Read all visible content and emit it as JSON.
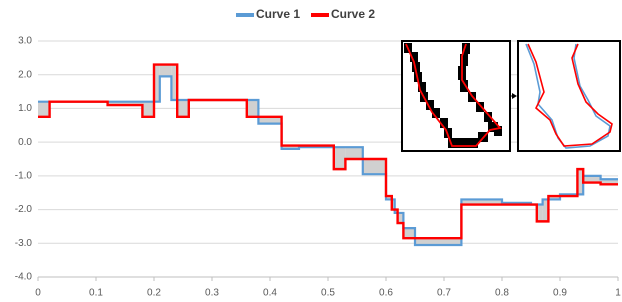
{
  "chart_data": {
    "type": "step",
    "legend": "top",
    "grid": true,
    "xlim": [
      0,
      1
    ],
    "xticks": [
      0,
      0.1,
      0.2,
      0.3,
      0.4,
      0.5,
      0.6,
      0.7,
      0.8,
      0.9,
      1
    ],
    "ylim": [
      -4,
      3
    ],
    "yticks": [
      {
        "value": -4,
        "label": "-4.0"
      },
      {
        "value": -3,
        "label": "-3.0"
      },
      {
        "value": -2,
        "label": "-2.0"
      },
      {
        "value": -1,
        "label": "-1.0"
      },
      {
        "value": 0,
        "label": "0.0"
      },
      {
        "value": 1,
        "label": "1.0"
      },
      {
        "value": 2,
        "label": "2.0"
      },
      {
        "value": 3,
        "label": "3.0"
      }
    ],
    "series": [
      {
        "name": "Curve 1",
        "color": "#5b9bd5",
        "x": [
          0,
          0.21,
          0.23,
          0.38,
          0.42,
          0.45,
          0.56,
          0.6,
          0.615,
          0.63,
          0.65,
          0.73,
          0.8,
          0.85,
          0.87,
          0.9,
          0.94,
          0.97,
          1
        ],
        "values": [
          1.2,
          1.95,
          1.25,
          0.55,
          -0.2,
          -0.15,
          -0.95,
          -1.7,
          -2.1,
          -2.55,
          -3.05,
          -1.7,
          -1.8,
          -1.85,
          -1.7,
          -1.55,
          -1.0,
          -1.1,
          -1.1
        ]
      },
      {
        "name": "Curve 2",
        "color": "#ff0000",
        "x": [
          0,
          0.02,
          0.12,
          0.18,
          0.2,
          0.24,
          0.26,
          0.36,
          0.42,
          0.51,
          0.53,
          0.6,
          0.61,
          0.62,
          0.63,
          0.73,
          0.86,
          0.88,
          0.93,
          0.94,
          0.97,
          1
        ],
        "values": [
          0.75,
          1.2,
          1.1,
          0.75,
          2.3,
          0.75,
          1.25,
          0.75,
          -0.1,
          -0.8,
          -0.5,
          -1.6,
          -2.0,
          -2.4,
          -2.85,
          -1.85,
          -2.35,
          -1.6,
          -0.8,
          -1.2,
          -1.25,
          -1.25
        ]
      }
    ]
  }
}
